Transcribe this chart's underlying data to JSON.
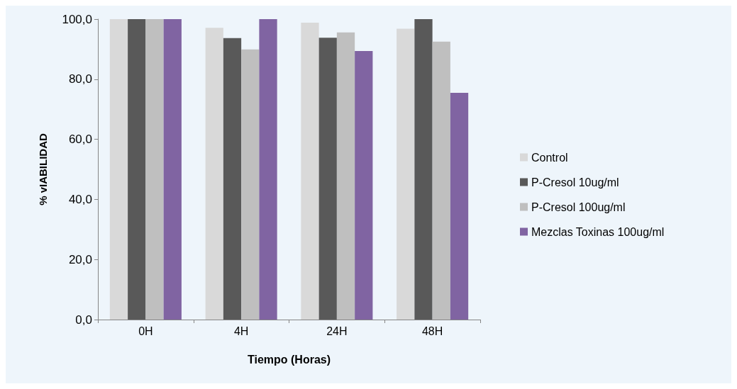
{
  "chart_data": {
    "type": "bar",
    "xlabel": "Tiempo (Horas)",
    "ylabel": "% vIABILIDAD",
    "categories": [
      "0H",
      "4H",
      "24H",
      "48H"
    ],
    "series": [
      {
        "name": "Control",
        "color": "#d9d9d9",
        "values": [
          100,
          97.1,
          98.8,
          96.8
        ]
      },
      {
        "name": "P-Cresol 10ug/ml",
        "color": "#595959",
        "values": [
          100,
          93.7,
          93.8,
          100
        ]
      },
      {
        "name": "P-Cresol 100ug/ml",
        "color": "#bfbfbf",
        "values": [
          100,
          89.9,
          95.6,
          92.5
        ]
      },
      {
        "name": "Mezclas Toxinas 100ug/ml",
        "color": "#8064a2",
        "values": [
          100,
          100,
          89.4,
          75.5
        ]
      }
    ],
    "ylim": [
      0,
      100
    ],
    "yticks": [
      {
        "value": 0,
        "label": "0,0"
      },
      {
        "value": 20,
        "label": "20,0"
      },
      {
        "value": 40,
        "label": "40,0"
      },
      {
        "value": 60,
        "label": "60,0"
      },
      {
        "value": 80,
        "label": "80,0"
      },
      {
        "value": 100,
        "label": "100,0"
      }
    ],
    "grid": false,
    "legend": "right"
  }
}
